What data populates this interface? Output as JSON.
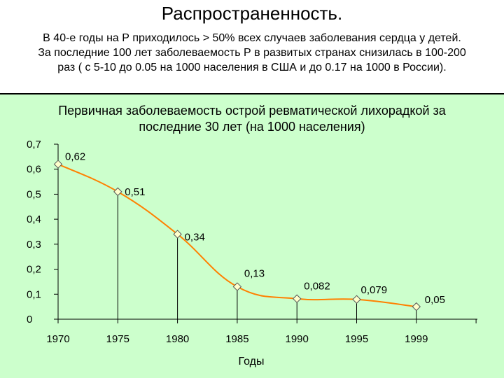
{
  "slide": {
    "title": "Распространенность.",
    "intro_lines": [
      "В 40-е годы на Р приходилось > 50% всех случаев заболевания сердца у детей.",
      "За последние 100 лет заболеваемость Р в развитых странах снизилась в 100-200",
      "раз ( с 5-10 до 0.05 на 1000 населения в США и до 0.17 на 1000 в России)."
    ],
    "panel_color": "#ccffcc"
  },
  "chart_data": {
    "type": "line",
    "title_lines": [
      "Первичная заболеваемость острой ревматической лихорадкой за",
      "последние 30 лет (на 1000 населения)"
    ],
    "xlabel": "Годы",
    "ylabel": "",
    "categories": [
      "1970",
      "1975",
      "1980",
      "1985",
      "1990",
      "1995",
      "1999"
    ],
    "series": [
      {
        "values": [
          0.62,
          0.51,
          0.34,
          0.13,
          0.082,
          0.079,
          0.05
        ],
        "labels": [
          "0,62",
          "0,51",
          "0,34",
          "0,13",
          "0,082",
          "0,079",
          "0,05"
        ],
        "color": "#ff8000",
        "marker": "diamond",
        "marker_color": "#ffffcc"
      }
    ],
    "ylim": [
      0,
      0.7
    ],
    "yticks": [
      0,
      0.1,
      0.2,
      0.3,
      0.4,
      0.5,
      0.6,
      0.7
    ],
    "ytick_labels": [
      "0",
      "0,1",
      "0,2",
      "0,3",
      "0,4",
      "0,5",
      "0,6",
      "0,7"
    ],
    "drop_lines": true,
    "grid": false,
    "legend": "none",
    "smooth": true
  }
}
